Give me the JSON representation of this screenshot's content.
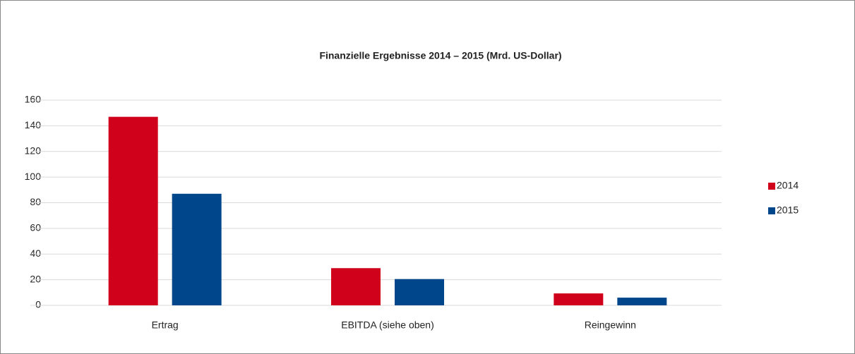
{
  "chart_data": {
    "type": "bar",
    "title": "Finanzielle Ergebnisse 2014 – 2015 (Mrd. US-Dollar)",
    "categories": [
      "Ertrag",
      "EBITDA (siehe oben)",
      "Reingewinn"
    ],
    "series": [
      {
        "name": "2014",
        "color": "#d0021b",
        "values": [
          147,
          29,
          9.3
        ]
      },
      {
        "name": "2015",
        "color": "#00468b",
        "values": [
          87,
          20.5,
          6
        ]
      }
    ],
    "ylim": [
      0,
      160
    ],
    "yticks": [
      0,
      20,
      40,
      60,
      80,
      100,
      120,
      140,
      160
    ],
    "grid": true,
    "legend": "right"
  }
}
